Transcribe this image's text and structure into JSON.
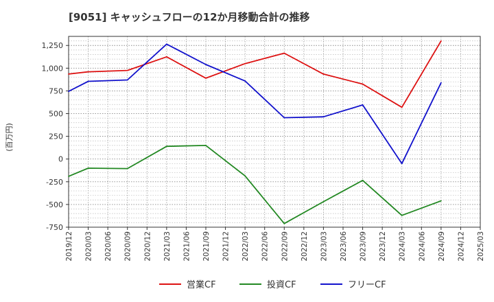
{
  "chart_data": {
    "type": "line",
    "title": "[9051]  キャッシュフローの12か月移動合計の推移",
    "ylabel": "(百万円)",
    "xlabel": "",
    "ylim": [
      -750,
      1350
    ],
    "yticks": [
      1250,
      1000,
      750,
      500,
      250,
      0,
      -250,
      -500,
      -750
    ],
    "ytick_labels": [
      "1,250",
      "1,000",
      "750",
      "500",
      "250",
      "0",
      "-250",
      "-500",
      "-750"
    ],
    "x_ticks": [
      "2019/12",
      "2020/03",
      "2020/06",
      "2020/09",
      "2020/12",
      "2021/03",
      "2021/06",
      "2021/09",
      "2021/12",
      "2022/03",
      "2022/06",
      "2022/09",
      "2022/12",
      "2023/03",
      "2023/06",
      "2023/09",
      "2023/12",
      "2024/03",
      "2024/06",
      "2024/09",
      "2024/12",
      "2025/03"
    ],
    "grid": true,
    "legend_position": "bottom-center",
    "series": [
      {
        "name": "営業CF",
        "color": "#dd1111",
        "points": [
          [
            "2019/12",
            935
          ],
          [
            "2020/03",
            960
          ],
          [
            "2020/09",
            975
          ],
          [
            "2021/03",
            1125
          ],
          [
            "2021/09",
            890
          ],
          [
            "2022/03",
            1050
          ],
          [
            "2022/09",
            1165
          ],
          [
            "2023/03",
            935
          ],
          [
            "2023/09",
            825
          ],
          [
            "2024/03",
            570
          ],
          [
            "2024/09",
            1300
          ]
        ]
      },
      {
        "name": "投資CF",
        "color": "#228822",
        "points": [
          [
            "2019/12",
            -190
          ],
          [
            "2020/03",
            -100
          ],
          [
            "2020/09",
            -105
          ],
          [
            "2021/03",
            140
          ],
          [
            "2021/09",
            150
          ],
          [
            "2022/03",
            -185
          ],
          [
            "2022/09",
            -710
          ],
          [
            "2023/03",
            -470
          ],
          [
            "2023/09",
            -235
          ],
          [
            "2024/03",
            -620
          ],
          [
            "2024/09",
            -460
          ]
        ]
      },
      {
        "name": "フリーCF",
        "color": "#1111cc",
        "points": [
          [
            "2019/12",
            745
          ],
          [
            "2020/03",
            855
          ],
          [
            "2020/09",
            870
          ],
          [
            "2021/03",
            1265
          ],
          [
            "2021/09",
            1040
          ],
          [
            "2022/03",
            860
          ],
          [
            "2022/09",
            455
          ],
          [
            "2023/03",
            465
          ],
          [
            "2023/09",
            595
          ],
          [
            "2024/03",
            -50
          ],
          [
            "2024/09",
            840
          ]
        ]
      }
    ]
  }
}
